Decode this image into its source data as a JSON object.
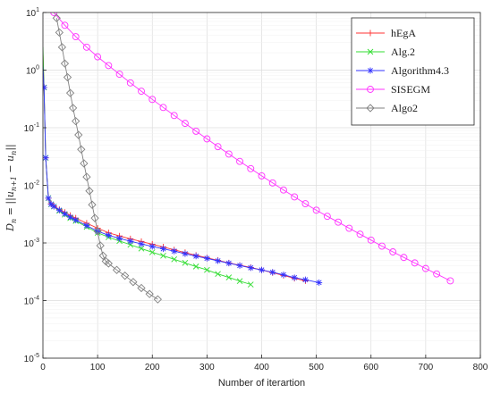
{
  "chart_data": {
    "type": "line",
    "title": "",
    "xlabel": "Number of iterartion",
    "ylabel": "D_n = ||u_{n+1} - u_n||",
    "ylabel_parts": {
      "lhs": "D",
      "sub_n": "n",
      "eq": " = ||",
      "u1": "u",
      "sub_n1": "n+1",
      "minus": " − ",
      "u2": "u",
      "sub_n2": "n",
      "close": "||"
    },
    "xlim": [
      0,
      800
    ],
    "ylim": [
      1e-05,
      10
    ],
    "yscale": "log",
    "grid": true,
    "legend_position": "top-right",
    "xticks": [
      "0",
      "100",
      "200",
      "300",
      "400",
      "500",
      "600",
      "700",
      "800"
    ],
    "yticks": [
      {
        "base": "10",
        "exp": "1"
      },
      {
        "base": "10",
        "exp": "0"
      },
      {
        "base": "10",
        "exp": "-1"
      },
      {
        "base": "10",
        "exp": "-2"
      },
      {
        "base": "10",
        "exp": "-3"
      },
      {
        "base": "10",
        "exp": "-4"
      },
      {
        "base": "10",
        "exp": "-5"
      }
    ],
    "series": [
      {
        "name": "hEgA",
        "color": "#ff3333",
        "marker": "plus",
        "x": [
          0,
          2,
          5,
          10,
          15,
          20,
          30,
          40,
          50,
          60,
          80,
          100,
          120,
          140,
          160,
          180,
          200,
          220,
          240,
          260,
          280,
          300,
          320,
          340,
          360,
          380,
          400,
          420,
          440,
          460,
          480
        ],
        "y": [
          2.0,
          0.5,
          0.03,
          0.006,
          0.0048,
          0.0044,
          0.0038,
          0.0034,
          0.003,
          0.0027,
          0.0022,
          0.0018,
          0.0015,
          0.00132,
          0.00118,
          0.00106,
          0.00095,
          0.00085,
          0.00076,
          0.00068,
          0.00061,
          0.00055,
          0.0005,
          0.00045,
          0.00041,
          0.000375,
          0.00034,
          0.000305,
          0.000273,
          0.000243,
          0.00022
        ]
      },
      {
        "name": "Alg.2",
        "color": "#33dd33",
        "marker": "cross",
        "x": [
          0,
          2,
          5,
          10,
          15,
          20,
          30,
          40,
          50,
          60,
          80,
          100,
          120,
          140,
          160,
          180,
          200,
          220,
          240,
          260,
          280,
          300,
          320,
          340,
          360,
          380
        ],
        "y": [
          2.5,
          0.5,
          0.03,
          0.006,
          0.0047,
          0.0043,
          0.0036,
          0.0031,
          0.0027,
          0.0024,
          0.0019,
          0.0015,
          0.00126,
          0.00108,
          0.00093,
          0.0008,
          0.00069,
          0.0006,
          0.00052,
          0.00045,
          0.00039,
          0.00034,
          0.00029,
          0.000252,
          0.000218,
          0.00019
        ]
      },
      {
        "name": "Algorithm4.3",
        "color": "#3333ff",
        "marker": "star",
        "x": [
          0,
          2,
          5,
          10,
          15,
          20,
          30,
          40,
          50,
          60,
          80,
          100,
          120,
          140,
          160,
          180,
          200,
          220,
          240,
          260,
          280,
          300,
          320,
          340,
          360,
          380,
          400,
          420,
          440,
          460,
          480,
          505
        ],
        "y": [
          1.2,
          0.5,
          0.03,
          0.006,
          0.0047,
          0.0043,
          0.0037,
          0.0032,
          0.0028,
          0.0025,
          0.002,
          0.0016,
          0.00136,
          0.0012,
          0.00107,
          0.00096,
          0.00087,
          0.00079,
          0.00072,
          0.00065,
          0.00059,
          0.00054,
          0.00049,
          0.000445,
          0.000405,
          0.00037,
          0.00034,
          0.00031,
          0.00028,
          0.00025,
          0.00023,
          0.000205
        ]
      },
      {
        "name": "SISEGM",
        "color": "#ff33ff",
        "marker": "circle",
        "x": [
          20,
          40,
          60,
          80,
          100,
          120,
          140,
          160,
          180,
          200,
          220,
          240,
          260,
          280,
          300,
          320,
          340,
          360,
          380,
          400,
          420,
          440,
          460,
          480,
          500,
          520,
          540,
          560,
          580,
          600,
          620,
          640,
          660,
          680,
          700,
          720,
          745
        ],
        "y": [
          10,
          6,
          3.8,
          2.5,
          1.7,
          1.2,
          0.85,
          0.6,
          0.43,
          0.31,
          0.225,
          0.163,
          0.119,
          0.087,
          0.064,
          0.047,
          0.035,
          0.026,
          0.0195,
          0.0146,
          0.011,
          0.0083,
          0.0063,
          0.0048,
          0.0037,
          0.0029,
          0.0023,
          0.0018,
          0.00142,
          0.00112,
          0.00088,
          0.0007,
          0.00056,
          0.00045,
          0.00036,
          0.00029,
          0.00022
        ]
      },
      {
        "name": "Algo2",
        "color": "#808080",
        "marker": "diamond",
        "x": [
          25,
          30,
          35,
          40,
          45,
          50,
          55,
          60,
          65,
          70,
          75,
          80,
          85,
          90,
          95,
          100,
          105,
          110,
          115,
          120,
          135,
          150,
          165,
          180,
          195,
          210
        ],
        "y": [
          8,
          4.5,
          2.5,
          1.3,
          0.75,
          0.4,
          0.22,
          0.13,
          0.075,
          0.042,
          0.024,
          0.014,
          0.008,
          0.0046,
          0.0027,
          0.0016,
          0.0009,
          0.0006,
          0.00048,
          0.00044,
          0.00034,
          0.00027,
          0.00021,
          0.000165,
          0.00013,
          0.000105
        ]
      }
    ]
  }
}
